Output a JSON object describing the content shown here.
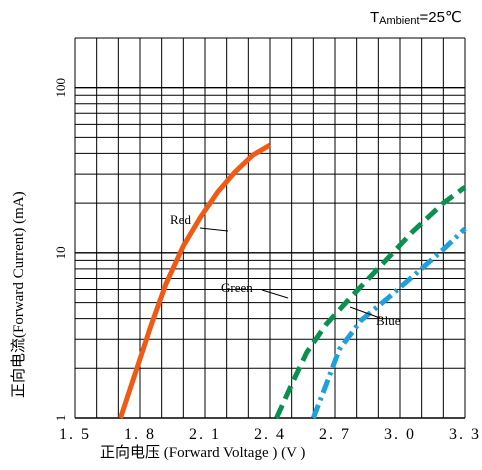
{
  "chart_data": {
    "type": "line",
    "annotation": {
      "prefix": "T",
      "subscript": "Ambient",
      "suffix": "=25℃"
    },
    "xlabel": "正向电压 (Forward  Voltage ) (V )",
    "ylabel": "正向电流(Forward  Current) (mA)",
    "x_scale": "linear",
    "y_scale": "log",
    "xlim": [
      1.5,
      3.3
    ],
    "ylim": [
      1,
      200
    ],
    "x_ticks": [
      1.5,
      1.8,
      2.1,
      2.4,
      2.7,
      3.0,
      3.3
    ],
    "x_tick_labels": [
      "1. 5",
      "1. 8",
      "2. 1",
      "2. 4",
      "2. 7",
      "3. 0",
      "3. 3"
    ],
    "y_ticks": [
      1,
      10,
      100
    ],
    "y_tick_labels": [
      "1",
      "10",
      "100"
    ],
    "grid": true,
    "series": [
      {
        "name": "Red",
        "color": "#f05a14",
        "dash": "solid",
        "x": [
          1.71,
          1.78,
          1.85,
          1.92,
          2.0,
          2.08,
          2.16,
          2.24,
          2.32,
          2.4
        ],
        "y": [
          1.0,
          1.9,
          3.6,
          6.5,
          11.0,
          16.5,
          23.5,
          31.0,
          39.0,
          45.0
        ]
      },
      {
        "name": "Green",
        "color": "#0a9150",
        "dash": "dash",
        "x": [
          2.43,
          2.5,
          2.57,
          2.66,
          2.78,
          2.92,
          3.06,
          3.2,
          3.3
        ],
        "y": [
          1.0,
          1.6,
          2.5,
          3.7,
          5.5,
          8.6,
          13.5,
          20.0,
          25.0
        ]
      },
      {
        "name": "Blue",
        "color": "#1ea0dc",
        "dash": "dashdot",
        "x": [
          2.6,
          2.66,
          2.72,
          2.82,
          2.95,
          3.08,
          3.2,
          3.3
        ],
        "y": [
          1.0,
          1.6,
          2.6,
          3.9,
          5.4,
          7.6,
          10.5,
          14.0
        ]
      }
    ]
  }
}
